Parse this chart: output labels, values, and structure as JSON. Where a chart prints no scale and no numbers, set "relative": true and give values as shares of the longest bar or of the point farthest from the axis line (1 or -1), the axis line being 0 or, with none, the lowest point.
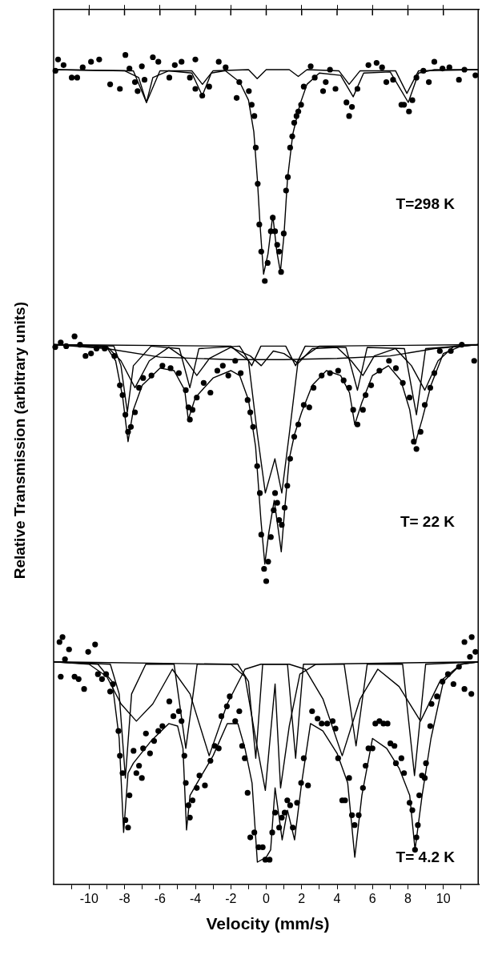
{
  "chart_data": [
    {
      "type": "scatter",
      "relative": true,
      "xlim": [
        -12,
        12
      ],
      "xticks": [
        {
          "value": -10,
          "label": null
        },
        {
          "value": -8,
          "label": null
        },
        {
          "value": -6,
          "label": null
        },
        {
          "value": -4,
          "label": null
        },
        {
          "value": -2,
          "label": null
        },
        {
          "value": 0,
          "label": null
        },
        {
          "value": 2,
          "label": null
        },
        {
          "value": 4,
          "label": null
        },
        {
          "value": 6,
          "label": null
        },
        {
          "value": 8,
          "label": null
        },
        {
          "value": 10,
          "label": null
        }
      ],
      "tick_labels": false,
      "annotations": [
        "T=298 K"
      ],
      "series": [
        {
          "marker": "circle",
          "color": "#000000",
          "x": [
            -11.9,
            -11.75,
            -11.44,
            -10.98,
            -10.67,
            -10.36,
            -9.89,
            -9.43,
            -8.81,
            -8.26,
            -7.95,
            -7.72,
            -7.41,
            -7.26,
            -7.02,
            -6.87,
            -6.4,
            -6.09,
            -5.47,
            -5.16,
            -4.78,
            -4.31,
            -4.0,
            -4.0,
            -3.61,
            -3.22,
            -2.68,
            -2.29,
            -1.67,
            -1.52,
            -0.98,
            -0.82,
            -0.67,
            -0.59,
            -0.48,
            -0.39,
            -0.28,
            -0.08,
            0.08,
            0.26,
            0.37,
            0.5,
            0.62,
            0.73,
            0.84,
            0.99,
            1.12,
            1.22,
            1.35,
            1.47,
            1.58,
            1.71,
            1.81,
            1.97,
            2.12,
            2.51,
            2.74,
            3.21,
            3.36,
            3.6,
            3.91,
            4.53,
            4.68,
            4.84,
            5.15,
            5.77,
            6.23,
            6.54,
            6.78,
            7.16,
            7.63,
            7.78,
            8.06,
            8.25,
            8.48,
            8.87,
            9.18,
            9.49,
            9.95,
            10.34,
            10.88,
            11.19,
            11.81
          ],
          "values": [
            0.93,
            0.98,
            0.955,
            0.9,
            0.9,
            0.945,
            0.97,
            0.98,
            0.87,
            0.85,
            1.0,
            0.94,
            0.88,
            0.84,
            0.95,
            0.89,
            0.99,
            0.97,
            0.9,
            0.955,
            0.97,
            0.9,
            0.98,
            0.85,
            0.82,
            0.86,
            0.97,
            0.945,
            0.81,
            0.88,
            0.84,
            0.78,
            0.73,
            0.59,
            0.43,
            0.25,
            0.13,
            0,
            0.08,
            0.22,
            0.28,
            0.22,
            0.16,
            0.13,
            0.04,
            0.21,
            0.4,
            0.46,
            0.59,
            0.64,
            0.7,
            0.73,
            0.75,
            0.78,
            0.86,
            0.95,
            0.9,
            0.84,
            0.88,
            0.935,
            0.85,
            0.79,
            0.73,
            0.77,
            0.85,
            0.955,
            0.965,
            0.945,
            0.88,
            0.89,
            0.78,
            0.78,
            0.75,
            0.8,
            0.9,
            0.93,
            0.88,
            0.97,
            0.94,
            0.945,
            0.89,
            0.935,
            0.91
          ]
        },
        {
          "type": "line",
          "color": "#000000",
          "x": [
            -12,
            -8,
            -7.2,
            -6.76,
            -6.4,
            -5.5,
            -4.2,
            -3.61,
            -3.1,
            -2.3,
            -1.5,
            -1,
            -0.7,
            -0.5,
            -0.35,
            -0.15,
            0.1,
            0.37,
            0.6,
            0.8,
            1.0,
            1.2,
            1.5,
            1.9,
            2.3,
            3.0,
            4.2,
            4.91,
            5.5,
            7.0,
            8.02,
            8.6,
            9.5,
            12
          ],
          "values": [
            0.935,
            0.93,
            0.9,
            0.79,
            0.9,
            0.93,
            0.92,
            0.82,
            0.92,
            0.93,
            0.88,
            0.8,
            0.66,
            0.45,
            0.25,
            0.03,
            0.12,
            0.29,
            0.13,
            0.04,
            0.2,
            0.45,
            0.65,
            0.78,
            0.87,
            0.92,
            0.91,
            0.815,
            0.92,
            0.925,
            0.79,
            0.92,
            0.935,
            0.935
          ]
        },
        {
          "type": "line",
          "color": "#000000",
          "x": [
            -12,
            -7.5,
            -6.76,
            -6.0,
            -4.2,
            -3.6,
            -3.0,
            -1.0,
            -0.51,
            0.0,
            1.3,
            1.81,
            2.3,
            4.1,
            4.68,
            5.3,
            7.3,
            7.94,
            8.6,
            12
          ],
          "values": [
            0.935,
            0.93,
            0.79,
            0.93,
            0.93,
            0.87,
            0.93,
            0.935,
            0.895,
            0.935,
            0.935,
            0.905,
            0.935,
            0.93,
            0.87,
            0.93,
            0.93,
            0.83,
            0.93,
            0.935
          ]
        }
      ]
    },
    {
      "type": "scatter",
      "relative": true,
      "ylabel": "Relative Transmission (arbitrary units)",
      "xlim": [
        -12,
        12
      ],
      "tick_labels": false,
      "annotations": [
        "T= 22 K"
      ],
      "series": [
        {
          "marker": "circle",
          "color": "#000000",
          "x": [
            -11.91,
            -11.6,
            -11.29,
            -10.82,
            -10.51,
            -10.2,
            -9.89,
            -9.58,
            -9.12,
            -8.57,
            -8.26,
            -8.11,
            -7.95,
            -7.8,
            -7.64,
            -7.41,
            -7.18,
            -6.95,
            -6.48,
            -5.86,
            -5.4,
            -4.93,
            -4.54,
            -4.39,
            -4.31,
            -4.16,
            -3.92,
            -3.53,
            -3.15,
            -2.76,
            -2.45,
            -2.14,
            -1.75,
            -1.44,
            -1.05,
            -0.9,
            -0.74,
            -0.51,
            -0.36,
            -0.28,
            -0.12,
            0.0,
            0.11,
            0.26,
            0.42,
            0.5,
            0.62,
            0.73,
            0.88,
            1.04,
            1.19,
            1.35,
            1.58,
            1.81,
            2.12,
            2.43,
            2.67,
            3.13,
            3.6,
            4.06,
            4.37,
            4.68,
            4.91,
            5.15,
            5.46,
            5.61,
            5.92,
            6.39,
            6.93,
            7.32,
            7.71,
            8.09,
            8.33,
            8.48,
            8.71,
            8.95,
            9.26,
            9.49,
            9.8,
            10.42,
            11.04,
            11.74
          ],
          "values": [
            0.956,
            0.975,
            0.96,
            1.0,
            0.966,
            0.92,
            0.93,
            0.95,
            0.95,
            0.92,
            0.8,
            0.76,
            0.68,
            0.61,
            0.63,
            0.69,
            0.79,
            0.83,
            0.84,
            0.88,
            0.87,
            0.85,
            0.78,
            0.71,
            0.66,
            0.7,
            0.75,
            0.81,
            0.77,
            0.86,
            0.88,
            0.84,
            0.9,
            0.85,
            0.74,
            0.69,
            0.63,
            0.47,
            0.36,
            0.19,
            0.05,
            0,
            0.08,
            0.18,
            0.29,
            0.36,
            0.32,
            0.25,
            0.23,
            0.3,
            0.39,
            0.5,
            0.59,
            0.64,
            0.72,
            0.71,
            0.79,
            0.84,
            0.85,
            0.86,
            0.82,
            0.79,
            0.7,
            0.64,
            0.7,
            0.76,
            0.8,
            0.86,
            0.9,
            0.87,
            0.81,
            0.75,
            0.57,
            0.54,
            0.61,
            0.72,
            0.79,
            0.85,
            0.94,
            0.94,
            0.966,
            0.9
          ]
        },
        {
          "type": "line",
          "color": "#000000",
          "x": [
            -12,
            -9,
            -8.5,
            -8.1,
            -7.8,
            -7.5,
            -7,
            -6,
            -5.2,
            -4.6,
            -4.4,
            -4.0,
            -3,
            -2,
            -1.5,
            -1,
            -0.6,
            -0.3,
            -0.08,
            0.15,
            0.45,
            0.7,
            0.85,
            1.05,
            1.3,
            1.6,
            2.0,
            2.6,
            3.4,
            4.2,
            4.7,
            5.0,
            5.4,
            6.0,
            6.9,
            7.6,
            8.1,
            8.4,
            8.8,
            9.3,
            10,
            11,
            12
          ],
          "values": [
            0.966,
            0.955,
            0.9,
            0.75,
            0.57,
            0.7,
            0.8,
            0.87,
            0.86,
            0.78,
            0.66,
            0.75,
            0.83,
            0.86,
            0.84,
            0.74,
            0.55,
            0.25,
            0.07,
            0.2,
            0.33,
            0.2,
            0.12,
            0.3,
            0.5,
            0.6,
            0.69,
            0.8,
            0.86,
            0.84,
            0.77,
            0.64,
            0.73,
            0.84,
            0.88,
            0.82,
            0.7,
            0.56,
            0.66,
            0.8,
            0.93,
            0.96,
            0.966
          ]
        },
        {
          "type": "line",
          "color": "#000000",
          "x": [
            -12,
            -8.6,
            -8.2,
            -7.84,
            -7.5,
            -6.5,
            -4.9,
            -4.31,
            -3.8,
            -1.5,
            -0.82,
            -0.3,
            1.1,
            1.66,
            2.2,
            4.5,
            5.15,
            5.7,
            7.8,
            8.48,
            9.0,
            12
          ],
          "values": [
            0.966,
            0.96,
            0.88,
            0.69,
            0.88,
            0.96,
            0.95,
            0.79,
            0.95,
            0.96,
            0.88,
            0.96,
            0.96,
            0.88,
            0.96,
            0.955,
            0.78,
            0.955,
            0.95,
            0.68,
            0.95,
            0.966
          ]
        },
        {
          "type": "line",
          "color": "#000000",
          "x": [
            -12,
            -9,
            -8.2,
            -7.41,
            -6.6,
            -5.5,
            -4.6,
            -3.92,
            -3.2,
            -2,
            -0.9,
            -0.28,
            0.4,
            1.0,
            1.8,
            2.6,
            4.0,
            4.8,
            5.46,
            6.1,
            7.3,
            8.2,
            8.95,
            9.7,
            10.6,
            12
          ],
          "values": [
            0.966,
            0.96,
            0.9,
            0.79,
            0.9,
            0.955,
            0.91,
            0.84,
            0.91,
            0.955,
            0.92,
            0.88,
            0.94,
            0.93,
            0.89,
            0.95,
            0.955,
            0.9,
            0.84,
            0.92,
            0.95,
            0.88,
            0.78,
            0.9,
            0.96,
            0.966
          ]
        },
        {
          "type": "line",
          "color": "#000000",
          "x": [
            -12,
            -9,
            -6,
            -2,
            1,
            4,
            7,
            9.5,
            12
          ],
          "values": [
            0.966,
            0.95,
            0.915,
            0.905,
            0.905,
            0.91,
            0.92,
            0.95,
            0.966
          ]
        },
        {
          "type": "line",
          "color": "#000000",
          "x": [
            -12,
            -2,
            -1,
            -0.5,
            -0.05,
            0.49,
            0.88,
            1.3,
            1.8,
            3,
            12
          ],
          "values": [
            0.966,
            0.96,
            0.9,
            0.6,
            0.36,
            0.5,
            0.36,
            0.6,
            0.9,
            0.96,
            0.966
          ]
        }
      ]
    },
    {
      "type": "scatter",
      "relative": true,
      "xlabel": "Velocity (mm/s)",
      "xlim": [
        -12,
        12
      ],
      "xticks": [
        {
          "value": -11,
          "label": null
        },
        -10,
        {
          "value": -9,
          "label": null
        },
        -8,
        {
          "value": -7,
          "label": null
        },
        -6,
        {
          "value": -5,
          "label": null
        },
        -4,
        {
          "value": -3,
          "label": null
        },
        -2,
        {
          "value": -1,
          "label": null
        },
        0,
        {
          "value": 1,
          "label": null
        },
        2,
        {
          "value": 3,
          "label": null
        },
        4,
        {
          "value": 5,
          "label": null
        },
        6,
        {
          "value": 7,
          "label": null
        },
        8,
        {
          "value": 9,
          "label": null
        },
        10,
        {
          "value": 11,
          "label": null
        }
      ],
      "tick_labels": "x",
      "annotations": [
        "T= 4.2 K"
      ],
      "series": [
        {
          "marker": "circle",
          "color": "#000000",
          "x": [
            -11.5,
            -11.67,
            -11.6,
            -11.36,
            -11.13,
            -10.82,
            -10.59,
            -10.28,
            -10.05,
            -9.66,
            -9.5,
            -9.27,
            -9.04,
            -8.81,
            -8.65,
            -8.34,
            -8.26,
            -8.11,
            -7.95,
            -7.8,
            -7.72,
            -7.49,
            -7.33,
            -7.18,
            -7.02,
            -6.95,
            -6.79,
            -6.56,
            -6.33,
            -6.09,
            -5.86,
            -5.47,
            -5.24,
            -4.93,
            -4.78,
            -4.62,
            -4.54,
            -4.39,
            -4.31,
            -4.16,
            -3.92,
            -3.77,
            -3.46,
            -3.15,
            -2.91,
            -2.68,
            -2.53,
            -2.22,
            -2.06,
            -1.75,
            -1.52,
            -1.36,
            -1.21,
            -1.05,
            -0.9,
            -0.67,
            -0.43,
            -0.2,
            -0.05,
            0.19,
            0.34,
            0.5,
            0.73,
            0.88,
            1.04,
            1.19,
            1.35,
            1.5,
            1.74,
            1.97,
            2.12,
            2.36,
            2.59,
            2.9,
            3.13,
            3.44,
            3.75,
            3.91,
            4.06,
            4.29,
            4.45,
            4.68,
            4.84,
            4.99,
            5.22,
            5.46,
            5.61,
            5.77,
            6.0,
            6.16,
            6.39,
            6.62,
            6.85,
            7.01,
            7.24,
            7.32,
            7.63,
            7.78,
            8.09,
            8.25,
            8.4,
            8.48,
            8.56,
            8.64,
            8.79,
            8.95,
            9.02,
            9.26,
            9.33,
            9.64,
            9.95,
            10.26,
            10.57,
            10.88,
            11.19,
            11.19,
            11.5,
            11.58,
            11.6,
            11.81
          ],
          "values": [
            1.0,
            0.98,
            0.84,
            0.91,
            0.95,
            0.84,
            0.83,
            0.79,
            0.94,
            0.97,
            0.85,
            0.83,
            0.85,
            0.78,
            0.81,
            0.62,
            0.52,
            0.45,
            0.26,
            0.23,
            0.36,
            0.54,
            0.45,
            0.48,
            0.43,
            0.55,
            0.61,
            0.53,
            0.58,
            0.62,
            0.64,
            0.74,
            0.68,
            0.7,
            0.66,
            0.52,
            0.41,
            0.32,
            0.27,
            0.34,
            0.39,
            0.44,
            0.4,
            0.5,
            0.56,
            0.55,
            0.68,
            0.72,
            0.76,
            0.66,
            0.7,
            0.56,
            0.51,
            0.37,
            0.19,
            0.21,
            0.15,
            0.15,
            0.1,
            0.1,
            0.21,
            0.29,
            0.23,
            0.27,
            0.29,
            0.34,
            0.32,
            0.23,
            0.33,
            0.41,
            0.51,
            0.4,
            0.7,
            0.67,
            0.65,
            0.65,
            0.66,
            0.63,
            0.51,
            0.34,
            0.34,
            0.43,
            0.28,
            0.24,
            0.28,
            0.39,
            0.48,
            0.55,
            0.55,
            0.65,
            0.66,
            0.65,
            0.65,
            0.57,
            0.56,
            0.49,
            0.51,
            0.45,
            0.33,
            0.3,
            0.14,
            0.19,
            0.24,
            0.36,
            0.44,
            0.43,
            0.49,
            0.64,
            0.73,
            0.76,
            0.82,
            0.85,
            0.81,
            0.88,
            0.79,
            0.98,
            0.92,
            0.77,
            1.0,
            0.94
          ]
        },
        {
          "type": "line",
          "color": "#000000",
          "x": [
            -12,
            -9.5,
            -8.7,
            -8.3,
            -8.05,
            -7.8,
            -7.5,
            -6.5,
            -5.5,
            -5.0,
            -4.7,
            -4.5,
            -4.3,
            -3.9,
            -3,
            -2.2,
            -1.6,
            -1.2,
            -0.8,
            -0.5,
            0.0,
            0.25,
            0.5,
            0.9,
            1.2,
            1.6,
            2.0,
            2.5,
            3.2,
            4.0,
            4.6,
            5.0,
            5.4,
            6.0,
            6.8,
            7.5,
            8.1,
            8.4,
            8.8,
            9.3,
            10,
            11,
            12
          ],
          "values": [
            0.9,
            0.89,
            0.82,
            0.59,
            0.21,
            0.45,
            0.49,
            0.58,
            0.65,
            0.64,
            0.55,
            0.22,
            0.36,
            0.41,
            0.52,
            0.65,
            0.65,
            0.55,
            0.41,
            0.09,
            0.11,
            0.14,
            0.39,
            0.18,
            0.3,
            0.18,
            0.41,
            0.65,
            0.62,
            0.53,
            0.41,
            0.11,
            0.36,
            0.59,
            0.55,
            0.47,
            0.36,
            0.14,
            0.36,
            0.59,
            0.82,
            0.89,
            0.9
          ]
        },
        {
          "type": "line",
          "color": "#000000",
          "x": [
            -12,
            -8.8,
            -8.3,
            -7.95,
            -7.6,
            -6.8,
            -5.2,
            -4.54,
            -3.9,
            -1.6,
            -1.0,
            -0.59,
            -0.2,
            1.2,
            1.66,
            2.1,
            4.4,
            5.07,
            5.7,
            7.7,
            8.37,
            9.0,
            12
          ],
          "values": [
            0.9,
            0.89,
            0.77,
            0.43,
            0.77,
            0.89,
            0.89,
            0.55,
            0.89,
            0.89,
            0.82,
            0.51,
            0.89,
            0.89,
            0.51,
            0.89,
            0.89,
            0.56,
            0.89,
            0.89,
            0.44,
            0.89,
            0.9
          ]
        },
        {
          "type": "line",
          "color": "#000000",
          "x": [
            -12,
            -10,
            -9,
            -8.2,
            -7.33,
            -6.4,
            -5.3,
            -4.3,
            -3.22,
            -2.2,
            -1.2,
            -0.3,
            0.5,
            1.3,
            2.2,
            3.2,
            4.29,
            5.3,
            6.3,
            7.5,
            8.71,
            9.8,
            11,
            12
          ],
          "values": [
            0.9,
            0.89,
            0.84,
            0.73,
            0.66,
            0.73,
            0.87,
            0.77,
            0.52,
            0.73,
            0.87,
            0.89,
            0.89,
            0.89,
            0.87,
            0.75,
            0.52,
            0.75,
            0.87,
            0.8,
            0.66,
            0.82,
            0.89,
            0.9
          ]
        },
        {
          "type": "line",
          "color": "#000000",
          "x": [
            -12,
            -2,
            -1.2,
            -0.6,
            -0.05,
            0.5,
            0.81,
            1.3,
            1.9,
            2.8,
            12
          ],
          "values": [
            0.9,
            0.89,
            0.84,
            0.59,
            0.38,
            0.81,
            0.39,
            0.64,
            0.85,
            0.89,
            0.9
          ]
        }
      ]
    }
  ]
}
